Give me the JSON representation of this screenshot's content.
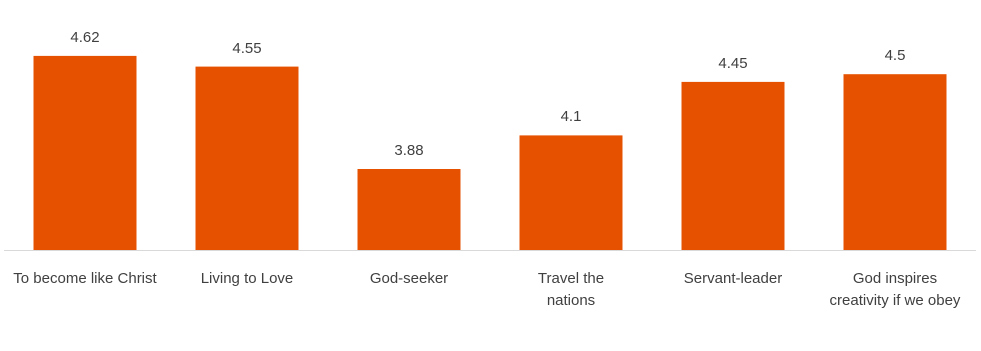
{
  "chart_data": {
    "type": "bar",
    "categories": [
      "To become like Christ",
      "Living to Love",
      "God-seeker",
      "Travel the nations",
      "Servant-leader",
      "God inspires creativity if we obey"
    ],
    "values": [
      4.62,
      4.55,
      3.88,
      4.1,
      4.45,
      4.5
    ],
    "value_labels": [
      "4.62",
      "4.55",
      "3.88",
      "4.1",
      "4.45",
      "4.5"
    ],
    "title": "",
    "xlabel": "",
    "ylabel": "",
    "ylim": [
      3.35,
      4.75
    ],
    "grid": false,
    "legend": "none",
    "colors": {
      "bar": "#E65100",
      "axis": "#D9D9D9",
      "text": "#404040"
    }
  }
}
